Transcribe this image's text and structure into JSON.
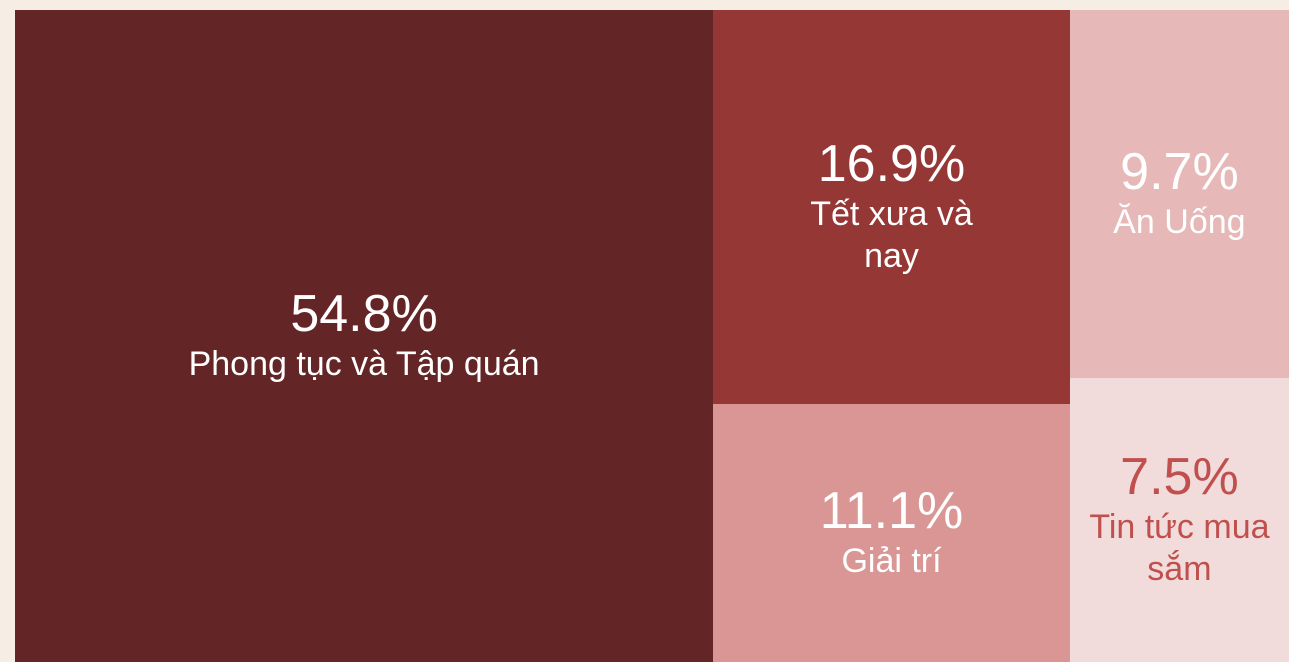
{
  "chart_data": {
    "type": "treemap",
    "categories": [
      "Phong tục và Tập quán",
      "Tết xưa và nay",
      "Giải trí",
      "Ăn Uống",
      "Tin tức mua sắm"
    ],
    "values": [
      54.8,
      16.9,
      11.1,
      9.7,
      7.5
    ],
    "value_labels": [
      "54.8%",
      "16.9%",
      "11.1%",
      "9.7%",
      "7.5%"
    ],
    "colors": [
      "#642526",
      "#953735",
      "#d99694",
      "#e6b9b8",
      "#f2dcdb"
    ],
    "label_colors": [
      "#ffffff",
      "#ffffff",
      "#ffffff",
      "#ffffff",
      "#c0504d"
    ]
  }
}
